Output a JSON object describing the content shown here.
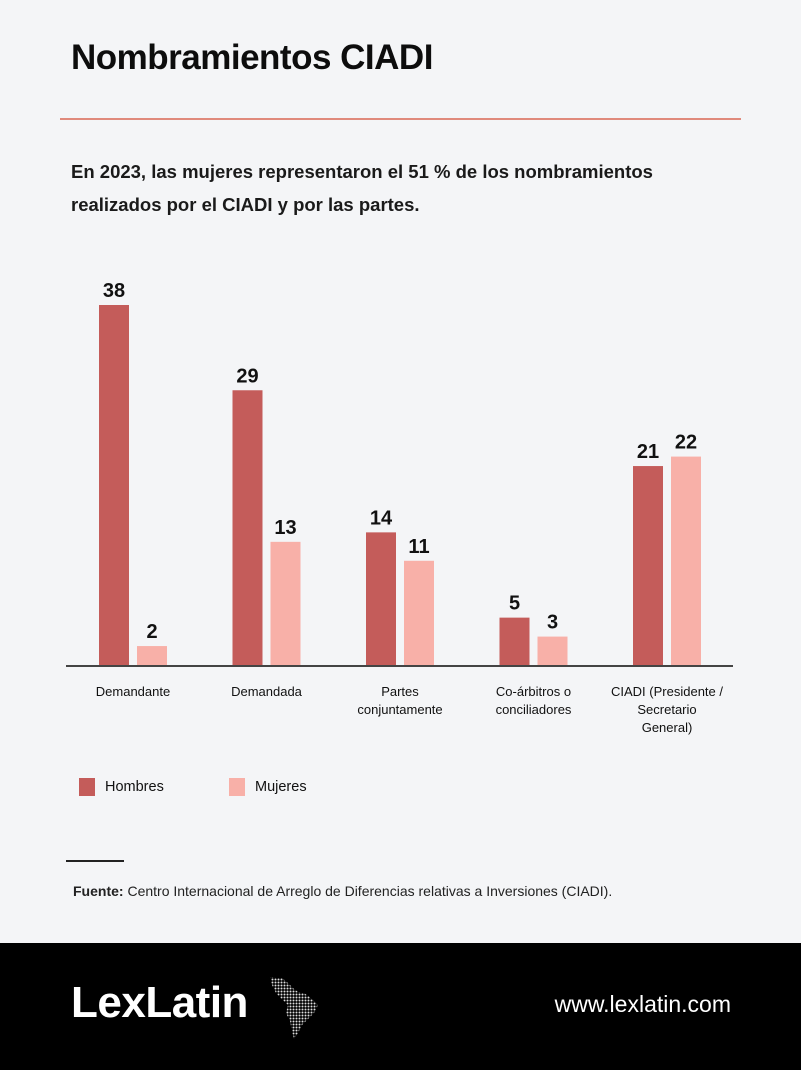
{
  "header": {
    "title": "Nombramientos CIADI",
    "subtitle": "En 2023, las mujeres representaron el 51 % de los nombramientos realizados por el CIADI y por las partes."
  },
  "chart_data": {
    "type": "bar",
    "categories": [
      [
        "Demandante"
      ],
      [
        "Demandada"
      ],
      [
        "Partes",
        "conjuntamente"
      ],
      [
        "Co-árbitros o",
        "conciliadores"
      ],
      [
        "CIADI (Presidente /",
        "Secretario",
        "General)"
      ]
    ],
    "series": [
      {
        "name": "Hombres",
        "color": "#c45c5a",
        "values": [
          38,
          29,
          14,
          5,
          21
        ]
      },
      {
        "name": "Mujeres",
        "color": "#f8b0a8",
        "values": [
          2,
          13,
          11,
          3,
          22
        ]
      }
    ],
    "ylim": [
      0,
      38
    ],
    "grid": false,
    "legend_position": "bottom-left"
  },
  "legend": {
    "hombres": "Hombres",
    "mujeres": "Mujeres"
  },
  "source": {
    "label": "Fuente:",
    "text": "Centro Internacional de Arreglo de Diferencias relativas a Inversiones (CIADI)."
  },
  "footer": {
    "logo": "LexLatin",
    "logo_icon": "latin-america-map-icon",
    "url": "www.lexlatin.com"
  }
}
